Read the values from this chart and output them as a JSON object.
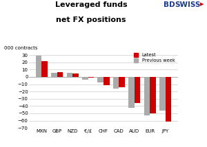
{
  "categories": [
    "MXN",
    "GBP",
    "NZD",
    "€/£",
    "CHF",
    "CAD",
    "AUD",
    "EUR",
    "JPY"
  ],
  "latest": [
    22,
    7,
    5,
    -1,
    -11,
    -14,
    -36,
    -50,
    -61
  ],
  "previous_week": [
    29,
    6,
    6,
    -4,
    -8,
    -16,
    -42,
    -53,
    -46
  ],
  "bar_color_latest": "#cc0000",
  "bar_color_prev": "#aaaaaa",
  "title_line1": "Leveraged funds",
  "title_line2": "net FX positions",
  "ylabel": "000 contracts",
  "ylim": [
    -70,
    35
  ],
  "yticks": [
    -70,
    -60,
    -50,
    -40,
    -30,
    -20,
    -10,
    0,
    10,
    20,
    30
  ],
  "legend_latest": "Latest",
  "legend_prev": "Previous week",
  "background_color": "#ffffff",
  "grid_color": "#cccccc",
  "bd_color": "#1a3a8c",
  "swiss_color": "#1a3a8c"
}
